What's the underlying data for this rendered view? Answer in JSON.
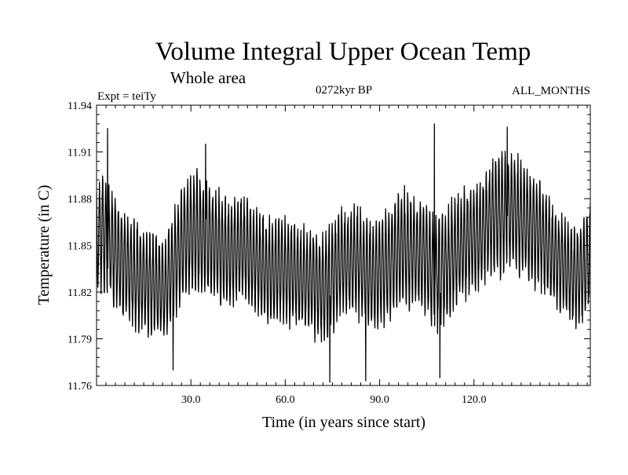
{
  "chart_data": {
    "type": "line",
    "title": "Volume Integral Upper Ocean Temp",
    "subtitle": "Whole area",
    "experiment_label": "Expt = teiTy",
    "period_label": "0272kyr BP",
    "months_label": "ALL_MONTHS",
    "xlabel": "Time (in years since start)",
    "ylabel": "Temperature (in C)",
    "xlim": [
      0,
      157
    ],
    "ylim": [
      11.76,
      11.94
    ],
    "x_ticks": [
      30,
      60,
      90,
      120
    ],
    "x_tick_labels": [
      "30.0",
      "60.0",
      "90.0",
      "120.0"
    ],
    "y_ticks": [
      11.76,
      11.79,
      11.82,
      11.85,
      11.88,
      11.91,
      11.94
    ],
    "y_tick_labels": [
      "11.76",
      "11.79",
      "11.82",
      "11.85",
      "11.88",
      "11.91",
      "11.94"
    ],
    "x_minor_step": 3,
    "y_minor_step": 0.006,
    "sampling": "monthly",
    "line_color": "#000000",
    "seasonal_envelope": {
      "x": [
        0,
        2,
        5,
        8,
        12,
        15,
        18,
        22,
        25,
        28,
        32,
        35,
        38,
        42,
        45,
        48,
        52,
        55,
        58,
        62,
        65,
        68,
        72,
        75,
        78,
        82,
        85,
        88,
        92,
        95,
        98,
        102,
        105,
        108,
        112,
        115,
        118,
        122,
        125,
        128,
        132,
        135,
        138,
        142,
        145,
        148,
        152,
        155,
        157
      ],
      "mean": [
        11.853,
        11.86,
        11.85,
        11.84,
        11.83,
        11.828,
        11.825,
        11.822,
        11.84,
        11.855,
        11.858,
        11.856,
        11.85,
        11.845,
        11.848,
        11.846,
        11.838,
        11.832,
        11.836,
        11.832,
        11.83,
        11.828,
        11.822,
        11.83,
        11.84,
        11.84,
        11.836,
        11.83,
        11.836,
        11.845,
        11.848,
        11.846,
        11.84,
        11.832,
        11.838,
        11.848,
        11.852,
        11.858,
        11.866,
        11.87,
        11.872,
        11.868,
        11.862,
        11.855,
        11.845,
        11.838,
        11.83,
        11.835,
        11.845
      ],
      "half_amplitude": [
        0.03,
        0.035,
        0.034,
        0.033,
        0.032,
        0.031,
        0.03,
        0.03,
        0.032,
        0.035,
        0.036,
        0.034,
        0.033,
        0.032,
        0.031,
        0.031,
        0.032,
        0.033,
        0.032,
        0.031,
        0.03,
        0.031,
        0.033,
        0.034,
        0.033,
        0.032,
        0.032,
        0.033,
        0.034,
        0.034,
        0.034,
        0.033,
        0.034,
        0.034,
        0.033,
        0.032,
        0.032,
        0.032,
        0.034,
        0.036,
        0.036,
        0.035,
        0.034,
        0.032,
        0.03,
        0.03,
        0.03,
        0.031,
        0.033
      ]
    },
    "notable_points": [
      {
        "x": 3.5,
        "y": 11.925
      },
      {
        "x": 24.3,
        "y": 11.77
      },
      {
        "x": 34.7,
        "y": 11.915
      },
      {
        "x": 74.2,
        "y": 11.762
      },
      {
        "x": 85.6,
        "y": 11.763
      },
      {
        "x": 107.4,
        "y": 11.928
      },
      {
        "x": 109.2,
        "y": 11.765
      },
      {
        "x": 130.6,
        "y": 11.926
      }
    ]
  }
}
